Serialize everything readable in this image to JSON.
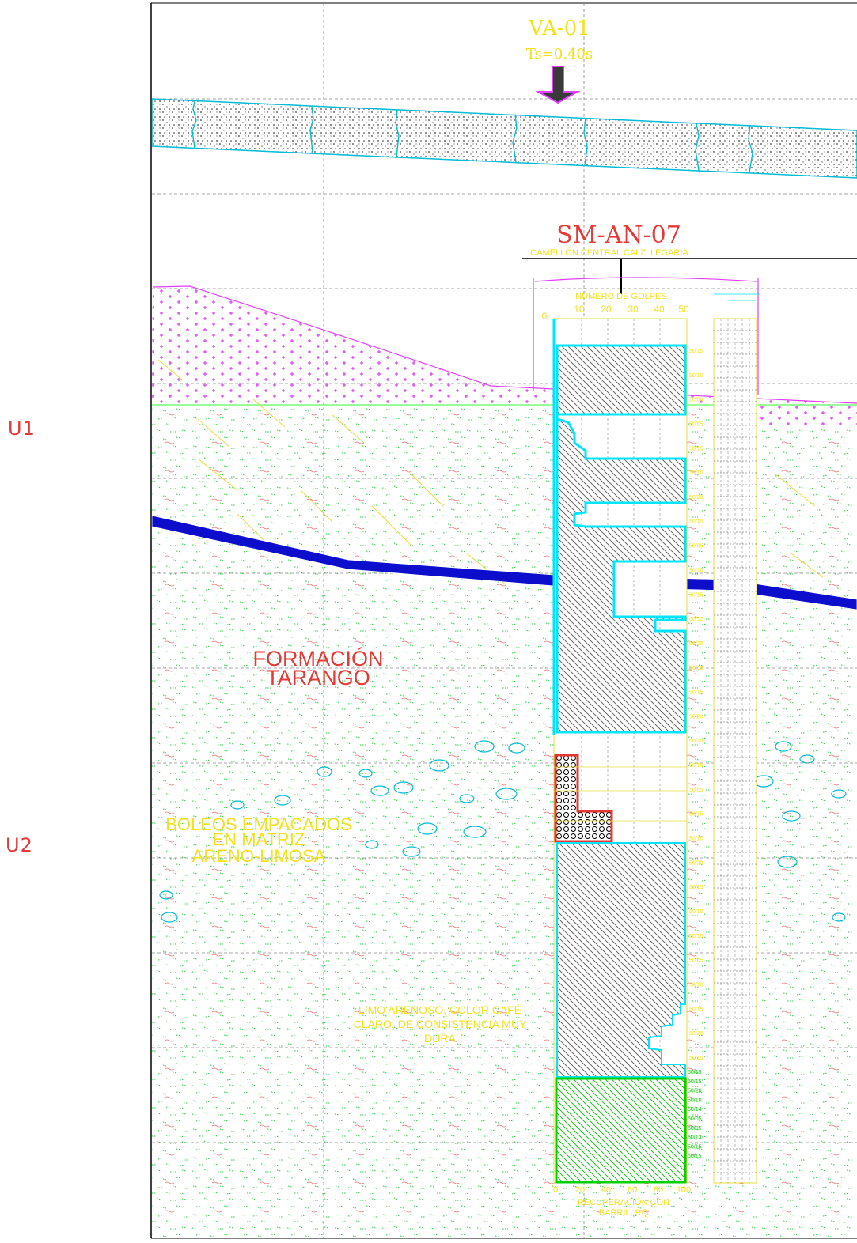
{
  "units": {
    "u1": "U1",
    "u2": "U2"
  },
  "seismic_station": {
    "name": "VA-01",
    "period": "Ts=0.40s"
  },
  "borehole": {
    "name": "SM-AN-07",
    "location": "CAMELLÓN CENTRAL CALZ. LEGARIA",
    "blows_axis_title": "NÚMERO DE GOLPES",
    "blows_ticks": [
      "0",
      "10",
      "20",
      "30",
      "40",
      "50"
    ],
    "recovery_ticks": [
      "0",
      "20",
      "40",
      "60",
      "80",
      "100"
    ],
    "recovery_title_1": "RECUPERACIÓN CON",
    "recovery_title_2": "BARRIL, RQ",
    "blow_counts": [
      "50/15",
      "50/10",
      "50/08",
      "50/05",
      "50/15",
      "50/10",
      "50/20",
      "50/15",
      "50/05",
      "50/10",
      "50/15",
      "50/12",
      "50/10",
      "50/08",
      "50/15",
      "50/20",
      "50/15",
      "50/10",
      "50/05",
      "50/15",
      "50/10",
      "50/20",
      "50/15",
      "50/10",
      "50/15",
      "50/05",
      "50/10",
      "50/15",
      "50/20",
      "50/15"
    ],
    "recovery_values": [
      "50/15",
      "50/15",
      "50/20",
      "50/10",
      "50/14",
      "50/05",
      "50/05",
      "50/13",
      "50/15",
      "50/15"
    ]
  },
  "geology": {
    "formation_line1": "FORMACIÓN",
    "formation_line2": "TARANGO",
    "boulders_line1": "BOLEOS EMPACADOS",
    "boulders_line2": "EN MATRIZ",
    "boulders_line3": "ARENO-LIMOSA",
    "silt_line1": "LIMO ARENOSO, COLOR CAFÉ",
    "silt_line2": "CLARO, DE CONSISTENCIA MUY",
    "silt_line3": "DURA"
  },
  "colors": {
    "frame": "#000000",
    "grid": "#8a8a8a",
    "pavement_outline": "#00bcd4",
    "fill_magenta": "#e040fb",
    "tarango_dots": "#2ecc40",
    "water_table": "#0d0dcc",
    "label_red": "#e53935",
    "label_yellow": "#f5e11b",
    "log_cyan": "#00e5ff",
    "log_hatch": "#555555",
    "recovery_green": "#00d000"
  }
}
